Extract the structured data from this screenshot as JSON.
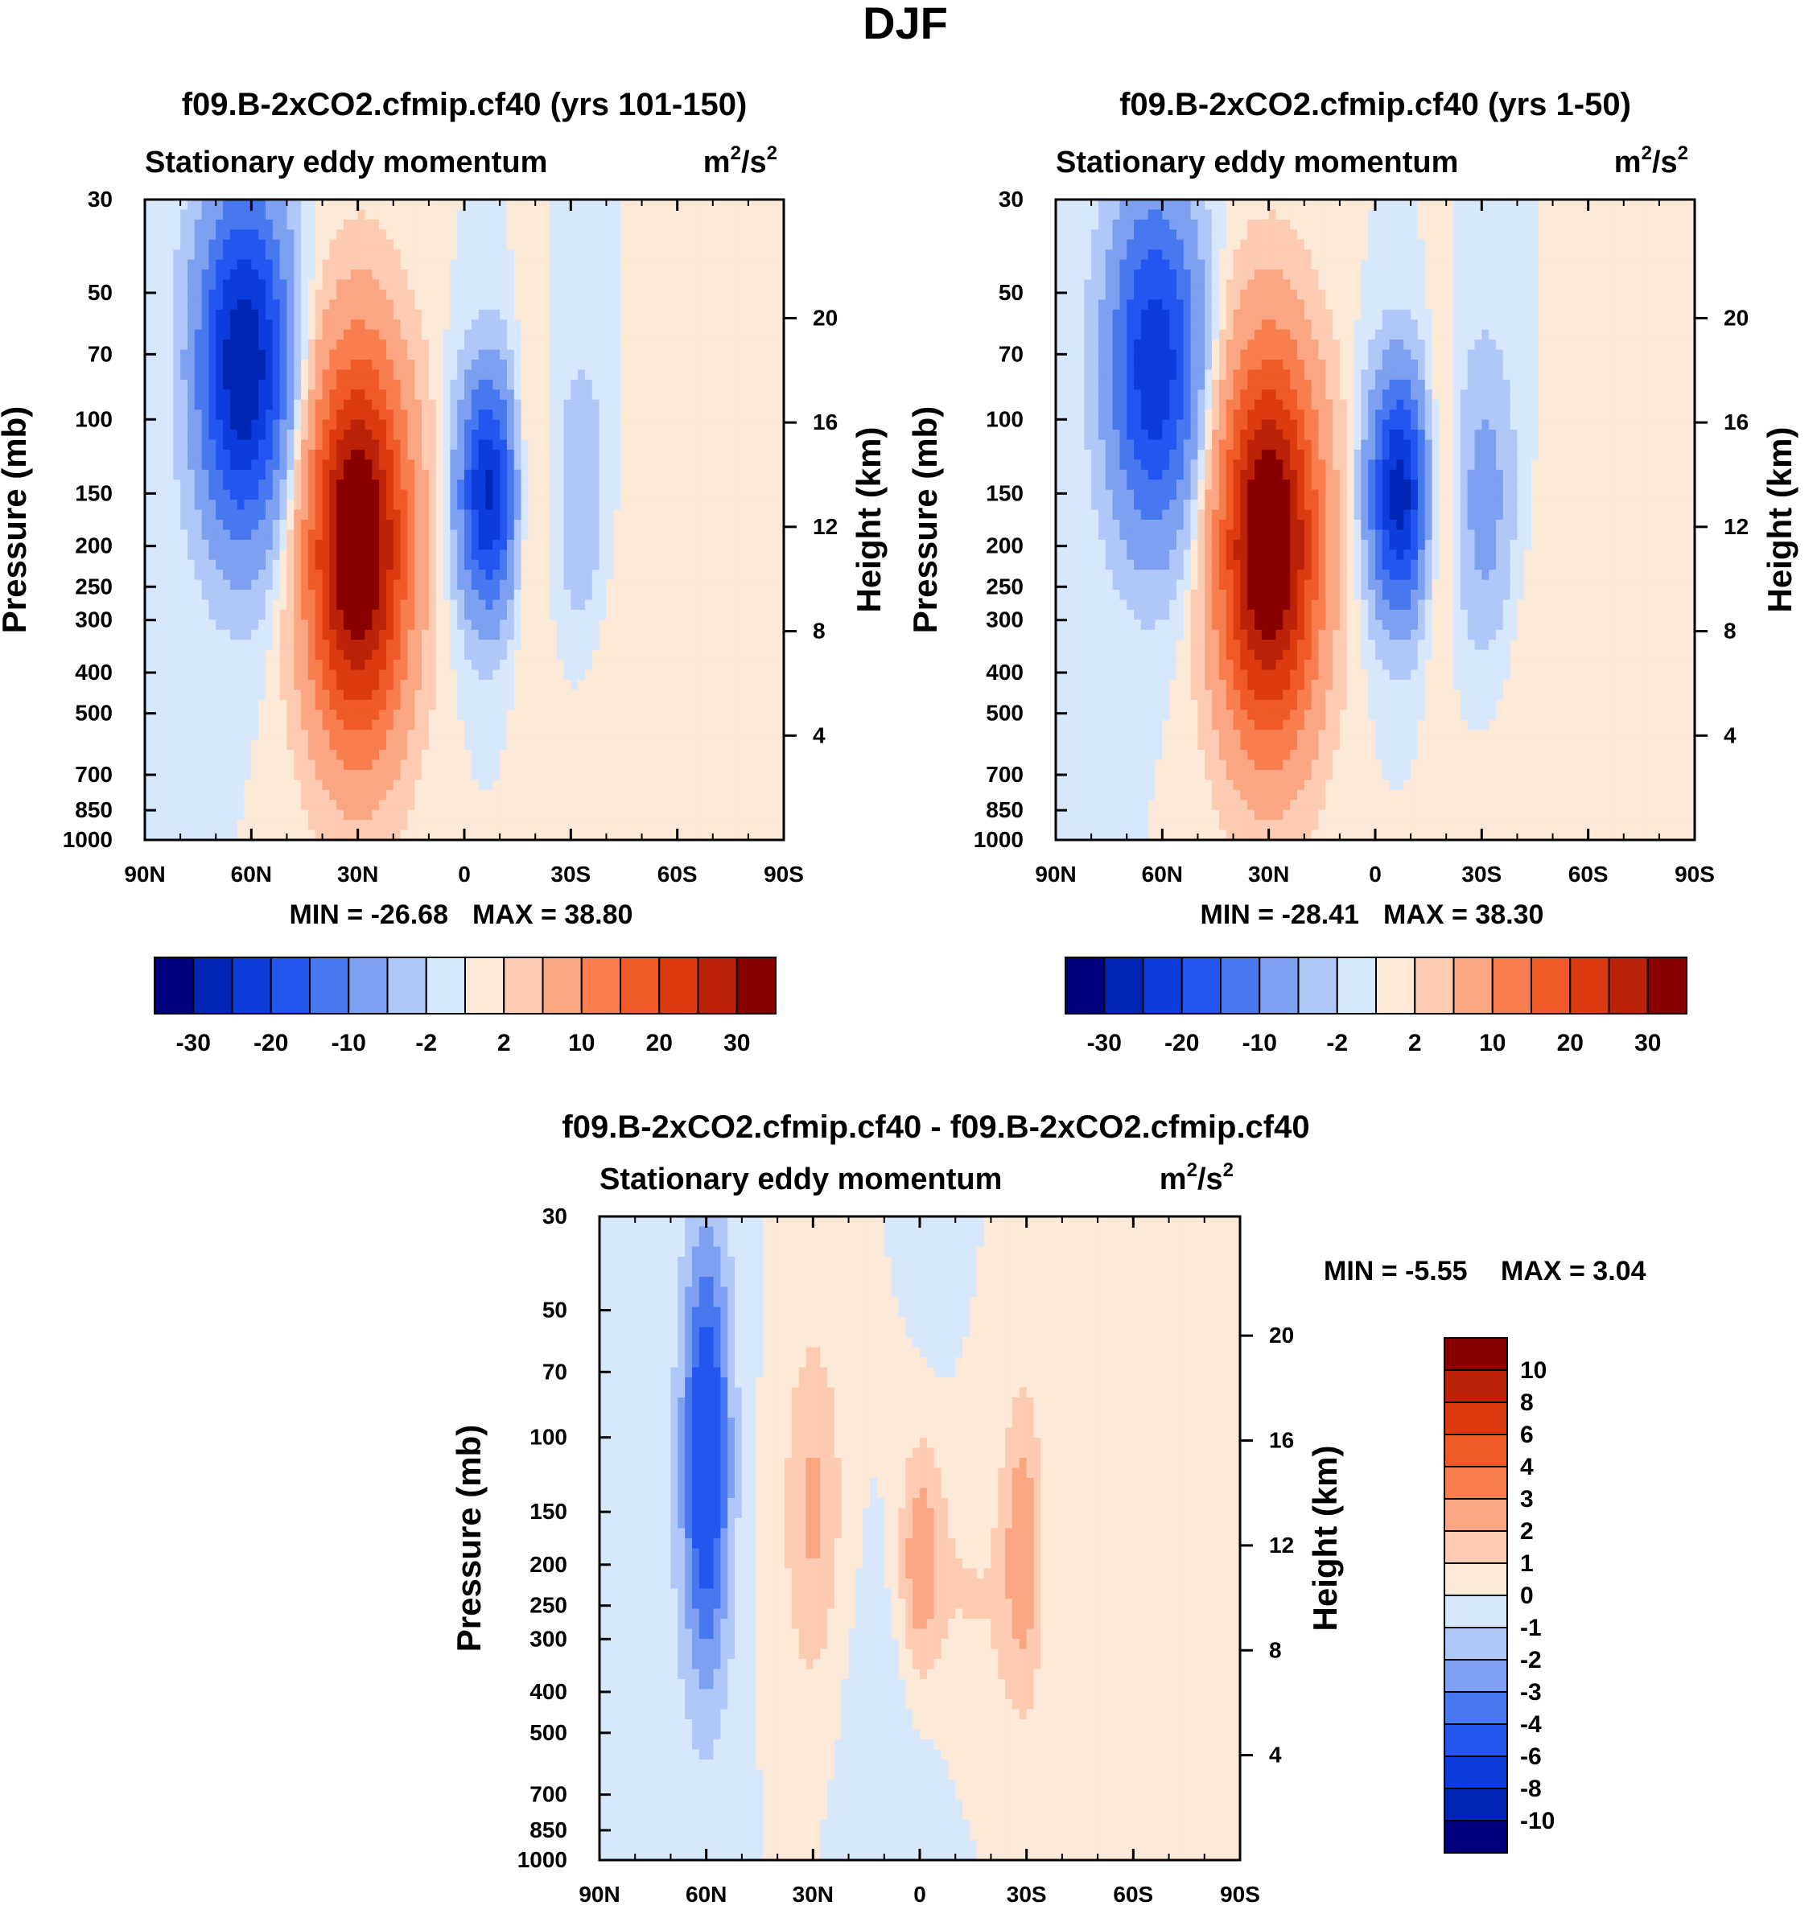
{
  "figure_title": "DJF",
  "palette": {
    "colors16": [
      "#00007f",
      "#0024b4",
      "#0c3cdc",
      "#2356f0",
      "#4878f0",
      "#7ea0f0",
      "#b0c8f8",
      "#d8e8fc",
      "#fde9d8",
      "#fccbb2",
      "#fba682",
      "#f87e50",
      "#f05a28",
      "#dc3a10",
      "#bc2208",
      "#8a0000"
    ]
  },
  "chart_data": [
    {
      "type": "contour",
      "id": "panel_a",
      "title": "f09.B-2xCO2.cfmip.cf40 (yrs 101-150)",
      "subtitle_left": "Stationary eddy momentum",
      "units_text": "m",
      "units_sup": "2",
      "units_mid": "/s",
      "units_sup2": "2",
      "xlabel": "",
      "ylabel": "Pressure (mb)",
      "ylabel_right": "Height (km)",
      "x_ticks": [
        "90N",
        "60N",
        "30N",
        "0",
        "30S",
        "60S",
        "90S"
      ],
      "y_ticks": [
        "30",
        "50",
        "70",
        "100",
        "150",
        "200",
        "250",
        "300",
        "400",
        "500",
        "700",
        "850",
        "1000"
      ],
      "y_right_ticks": [
        "4",
        "8",
        "12",
        "16",
        "20"
      ],
      "min_label": "MIN = -26.68",
      "max_label": "MAX =  38.80",
      "min": -26.68,
      "max": 38.8,
      "features": [
        {
          "lat": 62,
          "p": 75,
          "amp": -30,
          "sx": 9,
          "sy": 0.65
        },
        {
          "lat": 30,
          "p": 200,
          "amp": 38,
          "sx": 10,
          "sy": 0.75
        },
        {
          "lat": -7,
          "p": 150,
          "amp": -26,
          "sx": 6,
          "sy": 0.45
        },
        {
          "lat": -17,
          "p": 150,
          "amp": 6,
          "sx": 4,
          "sy": 0.55
        },
        {
          "lat": -33,
          "p": 160,
          "amp": -5,
          "sx": 5,
          "sy": 0.55
        },
        {
          "lat": -45,
          "p": 450,
          "amp": 1.5,
          "sx": 14,
          "sy": 0.8
        }
      ],
      "colorbar": {
        "orientation": "horizontal",
        "labels": [
          "-30",
          "-20",
          "-10",
          "-2",
          "2",
          "10",
          "20",
          "30"
        ],
        "levels": [
          -30,
          -25,
          -20,
          -15,
          -10,
          -5,
          -2,
          0,
          2,
          5,
          10,
          15,
          20,
          25,
          30
        ]
      }
    },
    {
      "type": "contour",
      "id": "panel_b",
      "title": "f09.B-2xCO2.cfmip.cf40 (yrs 1-50)",
      "subtitle_left": "Stationary eddy momentum",
      "units_text": "m",
      "units_sup": "2",
      "units_mid": "/s",
      "units_sup2": "2",
      "xlabel": "",
      "ylabel": "Pressure (mb)",
      "ylabel_right": "Height (km)",
      "x_ticks": [
        "90N",
        "60N",
        "30N",
        "0",
        "30S",
        "60S",
        "90S"
      ],
      "y_ticks": [
        "30",
        "50",
        "70",
        "100",
        "150",
        "200",
        "250",
        "300",
        "400",
        "500",
        "700",
        "850",
        "1000"
      ],
      "y_right_ticks": [
        "4",
        "8",
        "12",
        "16",
        "20"
      ],
      "min_label": "MIN = -28.41",
      "max_label": "MAX =  38.30",
      "min": -28.41,
      "max": 38.3,
      "features": [
        {
          "lat": 62,
          "p": 75,
          "amp": -24,
          "sx": 9,
          "sy": 0.65
        },
        {
          "lat": 30,
          "p": 200,
          "amp": 38,
          "sx": 10,
          "sy": 0.75
        },
        {
          "lat": -7,
          "p": 150,
          "amp": -28,
          "sx": 6,
          "sy": 0.45
        },
        {
          "lat": -17,
          "p": 150,
          "amp": 6,
          "sx": 4,
          "sy": 0.55
        },
        {
          "lat": -31,
          "p": 160,
          "amp": -7,
          "sx": 6,
          "sy": 0.6
        },
        {
          "lat": -45,
          "p": 450,
          "amp": 1.5,
          "sx": 14,
          "sy": 0.8
        }
      ],
      "colorbar": {
        "orientation": "horizontal",
        "labels": [
          "-30",
          "-20",
          "-10",
          "-2",
          "2",
          "10",
          "20",
          "30"
        ],
        "levels": [
          -30,
          -25,
          -20,
          -15,
          -10,
          -5,
          -2,
          0,
          2,
          5,
          10,
          15,
          20,
          25,
          30
        ]
      }
    },
    {
      "type": "contour",
      "id": "panel_diff",
      "title": "f09.B-2xCO2.cfmip.cf40 - f09.B-2xCO2.cfmip.cf40",
      "subtitle_left": "Stationary eddy momentum",
      "units_text": "m",
      "units_sup": "2",
      "units_mid": "/s",
      "units_sup2": "2",
      "xlabel": "",
      "ylabel": "Pressure (mb)",
      "ylabel_right": "Height (km)",
      "x_ticks": [
        "90N",
        "60N",
        "30N",
        "0",
        "30S",
        "60S",
        "90S"
      ],
      "y_ticks": [
        "30",
        "50",
        "70",
        "100",
        "150",
        "200",
        "250",
        "300",
        "400",
        "500",
        "700",
        "850",
        "1000"
      ],
      "y_right_ticks": [
        "4",
        "8",
        "12",
        "16",
        "20"
      ],
      "min_label": "MIN =  -5.55",
      "max_label": "MAX =   3.04",
      "min": -5.55,
      "max": 3.04,
      "features": [
        {
          "lat": 60,
          "p": 110,
          "amp": -5.5,
          "sx": 5,
          "sy": 0.9
        },
        {
          "lat": 30,
          "p": 150,
          "amp": 2.2,
          "sx": 6,
          "sy": 0.7
        },
        {
          "lat": 0,
          "p": 200,
          "amp": 2.6,
          "sx": 4,
          "sy": 0.45
        },
        {
          "lat": -29,
          "p": 180,
          "amp": 2.5,
          "sx": 4,
          "sy": 0.6
        },
        {
          "lat": -12,
          "p": 250,
          "amp": 1.2,
          "sx": 12,
          "sy": 0.6
        },
        {
          "lat": 5,
          "p": 450,
          "amp": -0.8,
          "sx": 12,
          "sy": 0.7
        },
        {
          "lat": 80,
          "p": 300,
          "amp": -0.6,
          "sx": 8,
          "sy": 0.9
        },
        {
          "lat": -5,
          "p": 40,
          "amp": -0.6,
          "sx": 4,
          "sy": 0.4
        }
      ],
      "colorbar": {
        "orientation": "vertical",
        "labels": [
          "10",
          "8",
          "6",
          "4",
          "3",
          "2",
          "1",
          "0",
          "-1",
          "-2",
          "-3",
          "-4",
          "-6",
          "-8",
          "-10"
        ],
        "levels": [
          -10,
          -8,
          -6,
          -4,
          -3,
          -2,
          -1,
          0,
          1,
          2,
          3,
          4,
          6,
          8,
          10
        ]
      }
    }
  ]
}
